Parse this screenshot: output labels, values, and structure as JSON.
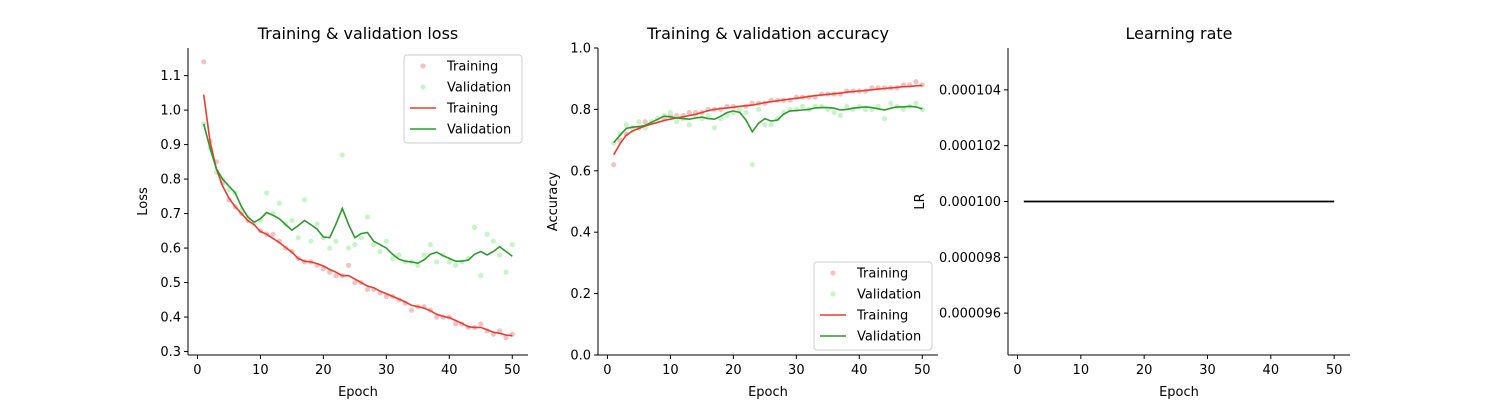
{
  "chart_data": [
    {
      "type": "line",
      "title": "Training & validation loss",
      "xlabel": "Epoch",
      "ylabel": "Loss",
      "xlim": [
        -1.5,
        52.5
      ],
      "ylim": [
        0.29,
        1.18
      ],
      "xticks": [
        0,
        10,
        20,
        30,
        40,
        50
      ],
      "yticks": [
        0.3,
        0.4,
        0.5,
        0.6,
        0.7,
        0.8,
        0.9,
        1.0,
        1.1
      ],
      "ytick_labels": [
        "0.3",
        "0.4",
        "0.5",
        "0.6",
        "0.7",
        "0.8",
        "0.9",
        "1.0",
        "1.1"
      ],
      "legend_position": "top-right",
      "x": [
        1,
        2,
        3,
        4,
        5,
        6,
        7,
        8,
        9,
        10,
        11,
        12,
        13,
        14,
        15,
        16,
        17,
        18,
        19,
        20,
        21,
        22,
        23,
        24,
        25,
        26,
        27,
        28,
        29,
        30,
        31,
        32,
        33,
        34,
        35,
        36,
        37,
        38,
        39,
        40,
        41,
        42,
        43,
        44,
        45,
        46,
        47,
        48,
        49,
        50
      ],
      "scatter_series": [
        {
          "name": "Training",
          "color": "#f4c2c2",
          "values": [
            1.14,
            0.91,
            0.85,
            0.79,
            0.74,
            0.72,
            0.7,
            0.68,
            0.67,
            0.65,
            0.64,
            0.64,
            0.62,
            0.6,
            0.59,
            0.57,
            0.56,
            0.56,
            0.55,
            0.54,
            0.53,
            0.52,
            0.52,
            0.55,
            0.5,
            0.5,
            0.48,
            0.48,
            0.47,
            0.46,
            0.46,
            0.45,
            0.44,
            0.42,
            0.43,
            0.43,
            0.42,
            0.4,
            0.4,
            0.4,
            0.38,
            0.38,
            0.37,
            0.37,
            0.38,
            0.36,
            0.35,
            0.36,
            0.34,
            0.35
          ]
        },
        {
          "name": "Validation",
          "color": "#c8f5c8",
          "values": [
            0.96,
            0.89,
            0.82,
            0.8,
            0.77,
            0.76,
            0.71,
            0.69,
            0.67,
            0.68,
            0.76,
            0.7,
            0.73,
            0.67,
            0.68,
            0.63,
            0.74,
            0.62,
            0.67,
            0.63,
            0.6,
            0.62,
            0.87,
            0.6,
            0.61,
            0.63,
            0.69,
            0.61,
            0.59,
            0.62,
            0.57,
            0.58,
            0.56,
            0.56,
            0.55,
            0.58,
            0.61,
            0.56,
            0.58,
            0.56,
            0.55,
            0.56,
            0.57,
            0.66,
            0.52,
            0.64,
            0.62,
            0.58,
            0.53,
            0.61
          ]
        }
      ],
      "series": [
        {
          "name": "Training",
          "color": "#ee3b2f",
          "values": [
            1.045,
            0.91,
            0.83,
            0.78,
            0.745,
            0.72,
            0.7,
            0.68,
            0.668,
            0.648,
            0.64,
            0.628,
            0.616,
            0.602,
            0.588,
            0.57,
            0.562,
            0.56,
            0.555,
            0.548,
            0.538,
            0.53,
            0.52,
            0.52,
            0.51,
            0.5,
            0.49,
            0.485,
            0.475,
            0.468,
            0.46,
            0.452,
            0.444,
            0.434,
            0.43,
            0.426,
            0.418,
            0.408,
            0.402,
            0.398,
            0.39,
            0.382,
            0.372,
            0.37,
            0.37,
            0.363,
            0.356,
            0.353,
            0.348,
            0.346
          ]
        },
        {
          "name": "Validation",
          "color": "#2e9a2e",
          "values": [
            0.96,
            0.89,
            0.83,
            0.8,
            0.78,
            0.76,
            0.72,
            0.69,
            0.675,
            0.685,
            0.703,
            0.695,
            0.685,
            0.668,
            0.652,
            0.665,
            0.68,
            0.668,
            0.655,
            0.632,
            0.63,
            0.67,
            0.715,
            0.668,
            0.63,
            0.642,
            0.645,
            0.62,
            0.61,
            0.6,
            0.582,
            0.568,
            0.562,
            0.56,
            0.556,
            0.566,
            0.582,
            0.588,
            0.578,
            0.57,
            0.562,
            0.562,
            0.565,
            0.582,
            0.59,
            0.58,
            0.59,
            0.604,
            0.59,
            0.576
          ]
        }
      ]
    },
    {
      "type": "line",
      "title": "Training & validation accuracy",
      "xlabel": "Epoch",
      "ylabel": "Accuracy",
      "xlim": [
        -1.5,
        52.5
      ],
      "ylim": [
        0.0,
        1.0
      ],
      "xticks": [
        0,
        10,
        20,
        30,
        40,
        50
      ],
      "yticks": [
        0.0,
        0.2,
        0.4,
        0.6,
        0.8,
        1.0
      ],
      "ytick_labels": [
        "0.0",
        "0.2",
        "0.4",
        "0.6",
        "0.8",
        "1.0"
      ],
      "legend_position": "bottom-right",
      "x": [
        1,
        2,
        3,
        4,
        5,
        6,
        7,
        8,
        9,
        10,
        11,
        12,
        13,
        14,
        15,
        16,
        17,
        18,
        19,
        20,
        21,
        22,
        23,
        24,
        25,
        26,
        27,
        28,
        29,
        30,
        31,
        32,
        33,
        34,
        35,
        36,
        37,
        38,
        39,
        40,
        41,
        42,
        43,
        44,
        45,
        46,
        47,
        48,
        49,
        50
      ],
      "scatter_series": [
        {
          "name": "Training",
          "color": "#f4c2c2",
          "values": [
            0.62,
            0.7,
            0.72,
            0.74,
            0.74,
            0.76,
            0.76,
            0.77,
            0.77,
            0.78,
            0.78,
            0.78,
            0.79,
            0.79,
            0.79,
            0.8,
            0.8,
            0.8,
            0.81,
            0.81,
            0.8,
            0.81,
            0.82,
            0.82,
            0.82,
            0.83,
            0.83,
            0.83,
            0.83,
            0.84,
            0.84,
            0.84,
            0.84,
            0.85,
            0.85,
            0.85,
            0.85,
            0.86,
            0.86,
            0.86,
            0.86,
            0.87,
            0.87,
            0.87,
            0.87,
            0.87,
            0.88,
            0.88,
            0.89,
            0.88
          ]
        },
        {
          "name": "Validation",
          "color": "#c8f5c8",
          "values": [
            0.69,
            0.72,
            0.75,
            0.73,
            0.76,
            0.74,
            0.76,
            0.77,
            0.78,
            0.79,
            0.76,
            0.77,
            0.75,
            0.78,
            0.77,
            0.78,
            0.74,
            0.77,
            0.78,
            0.79,
            0.8,
            0.79,
            0.62,
            0.8,
            0.75,
            0.75,
            0.77,
            0.79,
            0.8,
            0.8,
            0.81,
            0.8,
            0.81,
            0.81,
            0.8,
            0.79,
            0.78,
            0.81,
            0.8,
            0.81,
            0.8,
            0.8,
            0.81,
            0.77,
            0.82,
            0.81,
            0.8,
            0.81,
            0.82,
            0.8
          ]
        }
      ],
      "series": [
        {
          "name": "Training",
          "color": "#ee3b2f",
          "values": [
            0.652,
            0.688,
            0.716,
            0.73,
            0.738,
            0.746,
            0.752,
            0.758,
            0.764,
            0.768,
            0.772,
            0.776,
            0.78,
            0.784,
            0.79,
            0.796,
            0.8,
            0.803,
            0.805,
            0.807,
            0.81,
            0.812,
            0.814,
            0.818,
            0.822,
            0.825,
            0.828,
            0.831,
            0.834,
            0.836,
            0.839,
            0.842,
            0.845,
            0.847,
            0.849,
            0.851,
            0.853,
            0.856,
            0.858,
            0.86,
            0.862,
            0.864,
            0.866,
            0.868,
            0.87,
            0.872,
            0.874,
            0.875,
            0.877,
            0.878
          ]
        },
        {
          "name": "Validation",
          "color": "#2e9a2e",
          "values": [
            0.692,
            0.716,
            0.738,
            0.742,
            0.744,
            0.748,
            0.758,
            0.768,
            0.778,
            0.776,
            0.772,
            0.77,
            0.768,
            0.772,
            0.775,
            0.77,
            0.768,
            0.778,
            0.79,
            0.795,
            0.79,
            0.765,
            0.727,
            0.755,
            0.77,
            0.762,
            0.765,
            0.785,
            0.795,
            0.796,
            0.798,
            0.8,
            0.805,
            0.806,
            0.806,
            0.804,
            0.798,
            0.8,
            0.804,
            0.806,
            0.808,
            0.806,
            0.802,
            0.798,
            0.804,
            0.808,
            0.808,
            0.81,
            0.808,
            0.802
          ]
        }
      ]
    },
    {
      "type": "line",
      "title": "Learning rate",
      "xlabel": "Epoch",
      "ylabel": "LR",
      "xlim": [
        -1.5,
        52.5
      ],
      "ylim": [
        9.45e-05,
        0.0001055
      ],
      "xticks": [
        0,
        10,
        20,
        30,
        40,
        50
      ],
      "yticks": [
        9.6e-05,
        9.8e-05,
        0.0001,
        0.000102,
        0.000104
      ],
      "ytick_labels": [
        "0.000096",
        "0.000098",
        "0.000100",
        "0.000102",
        "0.000104"
      ],
      "x": [
        1,
        50
      ],
      "series": [
        {
          "name": "",
          "color": "#000000",
          "values": [
            0.0001,
            0.0001
          ]
        }
      ]
    }
  ]
}
